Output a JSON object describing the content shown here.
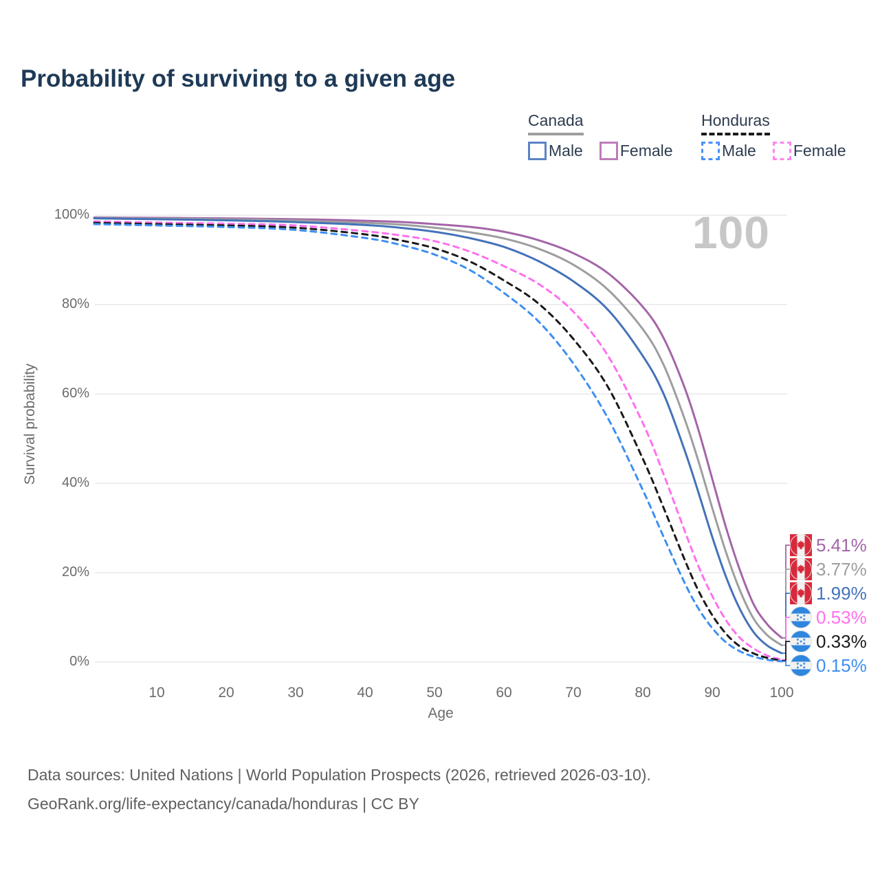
{
  "title": "Probability of surviving to a given age",
  "watermark_age": "100",
  "legend": {
    "canada": {
      "label": "Canada",
      "male": "Male",
      "female": "Female",
      "underline_color": "#9e9e9e",
      "male_swatch_color": "#5b83c6",
      "female_swatch_color": "#bd7cba"
    },
    "honduras": {
      "label": "Honduras",
      "male": "Male",
      "female": "Female",
      "underline_color": "#1a1a1a",
      "male_swatch_color": "#4a90f5",
      "female_swatch_color": "#ff85ee"
    }
  },
  "footer": {
    "line1": "Data sources: United Nations | World Population Prospects (2026, retrieved 2026-03-10).",
    "line2": "GeoRank.org/life-expectancy/canada/honduras | CC BY"
  },
  "colors": {
    "title": "#1e3a56",
    "gridline": "#e9e9ed",
    "tick_text": "#6b6b6b",
    "watermark": "#c7c7c7",
    "canada_flag_red": "#d8293c",
    "honduras_flag_blue": "#2f86dd",
    "flag_white": "#f2f2f2"
  },
  "chart_data": {
    "type": "line",
    "title": "Probability of surviving to a given age",
    "xlabel": "Age",
    "ylabel": "Survival probability",
    "xlim": [
      0,
      100
    ],
    "ylim": [
      0,
      100
    ],
    "x_ticks": [
      10,
      20,
      30,
      40,
      50,
      60,
      70,
      80,
      90,
      100
    ],
    "y_ticks": [
      0,
      20,
      40,
      60,
      80,
      100
    ],
    "y_tick_format": "percent",
    "grid": "horizontal",
    "legend_position": "top-right",
    "current_age_marker": 100,
    "series": [
      {
        "id": "canada-female",
        "country": "Canada",
        "sex": "Female",
        "style": "solid",
        "color": "#a365a8",
        "end_label": "5.41%",
        "flag": "canada",
        "points": [
          [
            1,
            99.5
          ],
          [
            5,
            99.45
          ],
          [
            10,
            99.4
          ],
          [
            15,
            99.35
          ],
          [
            20,
            99.3
          ],
          [
            25,
            99.2
          ],
          [
            30,
            99.1
          ],
          [
            35,
            98.95
          ],
          [
            40,
            98.75
          ],
          [
            45,
            98.5
          ],
          [
            50,
            98.0
          ],
          [
            55,
            97.4
          ],
          [
            60,
            96.3
          ],
          [
            65,
            94.4
          ],
          [
            70,
            91.5
          ],
          [
            75,
            87.0
          ],
          [
            80,
            79.5
          ],
          [
            83,
            72.5
          ],
          [
            86,
            61.5
          ],
          [
            88,
            52
          ],
          [
            90,
            41
          ],
          [
            92,
            30
          ],
          [
            94,
            20.5
          ],
          [
            96,
            12.8
          ],
          [
            98,
            8.3
          ],
          [
            100,
            5.41
          ]
        ]
      },
      {
        "id": "canada-both",
        "country": "Canada",
        "sex": "Both",
        "style": "solid",
        "color": "#9e9e9e",
        "end_label": "3.77%",
        "flag": "canada",
        "points": [
          [
            1,
            99.4
          ],
          [
            10,
            99.25
          ],
          [
            20,
            99.1
          ],
          [
            30,
            98.8
          ],
          [
            40,
            98.3
          ],
          [
            45,
            97.9
          ],
          [
            50,
            97.2
          ],
          [
            55,
            96.2
          ],
          [
            60,
            94.8
          ],
          [
            65,
            92.5
          ],
          [
            70,
            88.9
          ],
          [
            75,
            83.3
          ],
          [
            80,
            74.5
          ],
          [
            83,
            66.5
          ],
          [
            86,
            54.5
          ],
          [
            88,
            45
          ],
          [
            90,
            34.5
          ],
          [
            92,
            24.5
          ],
          [
            94,
            16
          ],
          [
            96,
            9.6
          ],
          [
            98,
            5.9
          ],
          [
            100,
            3.77
          ]
        ]
      },
      {
        "id": "canada-male",
        "country": "Canada",
        "sex": "Male",
        "style": "solid",
        "color": "#4472b9",
        "end_label": "1.99%",
        "flag": "canada",
        "points": [
          [
            1,
            99.3
          ],
          [
            10,
            99.1
          ],
          [
            20,
            98.85
          ],
          [
            30,
            98.45
          ],
          [
            40,
            97.8
          ],
          [
            45,
            97.2
          ],
          [
            50,
            96.3
          ],
          [
            55,
            94.9
          ],
          [
            60,
            92.9
          ],
          [
            65,
            89.7
          ],
          [
            70,
            85.2
          ],
          [
            75,
            78.8
          ],
          [
            80,
            68.5
          ],
          [
            83,
            60
          ],
          [
            86,
            47.5
          ],
          [
            88,
            38
          ],
          [
            90,
            28
          ],
          [
            92,
            19
          ],
          [
            94,
            11.8
          ],
          [
            96,
            6.6
          ],
          [
            98,
            3.6
          ],
          [
            100,
            1.99
          ]
        ]
      },
      {
        "id": "honduras-female",
        "country": "Honduras",
        "sex": "Female",
        "style": "dashed",
        "color": "#ff70ee",
        "end_label": "0.53%",
        "flag": "honduras",
        "points": [
          [
            1,
            98.6
          ],
          [
            10,
            98.35
          ],
          [
            20,
            98.1
          ],
          [
            30,
            97.7
          ],
          [
            40,
            96.4
          ],
          [
            45,
            95.5
          ],
          [
            50,
            94.2
          ],
          [
            55,
            91.9
          ],
          [
            60,
            88.6
          ],
          [
            65,
            84.6
          ],
          [
            70,
            78.4
          ],
          [
            75,
            68.5
          ],
          [
            80,
            53.5
          ],
          [
            83,
            42
          ],
          [
            86,
            29.5
          ],
          [
            88,
            21.5
          ],
          [
            90,
            14.8
          ],
          [
            92,
            9.3
          ],
          [
            94,
            5.4
          ],
          [
            96,
            3.0
          ],
          [
            98,
            1.4
          ],
          [
            100,
            0.53
          ]
        ]
      },
      {
        "id": "honduras-both",
        "country": "Honduras",
        "sex": "Both",
        "style": "dashed",
        "color": "#1a1a1a",
        "end_label": "0.33%",
        "flag": "honduras",
        "points": [
          [
            1,
            98.3
          ],
          [
            10,
            98.0
          ],
          [
            20,
            97.7
          ],
          [
            30,
            97.2
          ],
          [
            40,
            95.7
          ],
          [
            45,
            94.4
          ],
          [
            50,
            92.6
          ],
          [
            55,
            89.7
          ],
          [
            60,
            85.4
          ],
          [
            65,
            80.2
          ],
          [
            70,
            72.3
          ],
          [
            75,
            61.5
          ],
          [
            80,
            45.5
          ],
          [
            83,
            34.5
          ],
          [
            86,
            23
          ],
          [
            88,
            16
          ],
          [
            90,
            10.5
          ],
          [
            92,
            6.3
          ],
          [
            94,
            3.5
          ],
          [
            96,
            1.9
          ],
          [
            98,
            0.9
          ],
          [
            100,
            0.33
          ]
        ]
      },
      {
        "id": "honduras-male",
        "country": "Honduras",
        "sex": "Male",
        "style": "dashed",
        "color": "#3d8ff2",
        "end_label": "0.15%",
        "flag": "honduras",
        "points": [
          [
            1,
            98.0
          ],
          [
            10,
            97.7
          ],
          [
            20,
            97.35
          ],
          [
            30,
            96.7
          ],
          [
            40,
            94.9
          ],
          [
            45,
            93.4
          ],
          [
            50,
            91.2
          ],
          [
            55,
            87.8
          ],
          [
            60,
            82.6
          ],
          [
            65,
            76.2
          ],
          [
            70,
            66.8
          ],
          [
            75,
            54.5
          ],
          [
            80,
            38.5
          ],
          [
            83,
            28
          ],
          [
            86,
            17.8
          ],
          [
            88,
            12
          ],
          [
            90,
            7.6
          ],
          [
            92,
            4.4
          ],
          [
            94,
            2.4
          ],
          [
            96,
            1.2
          ],
          [
            98,
            0.5
          ],
          [
            100,
            0.15
          ]
        ]
      }
    ]
  }
}
